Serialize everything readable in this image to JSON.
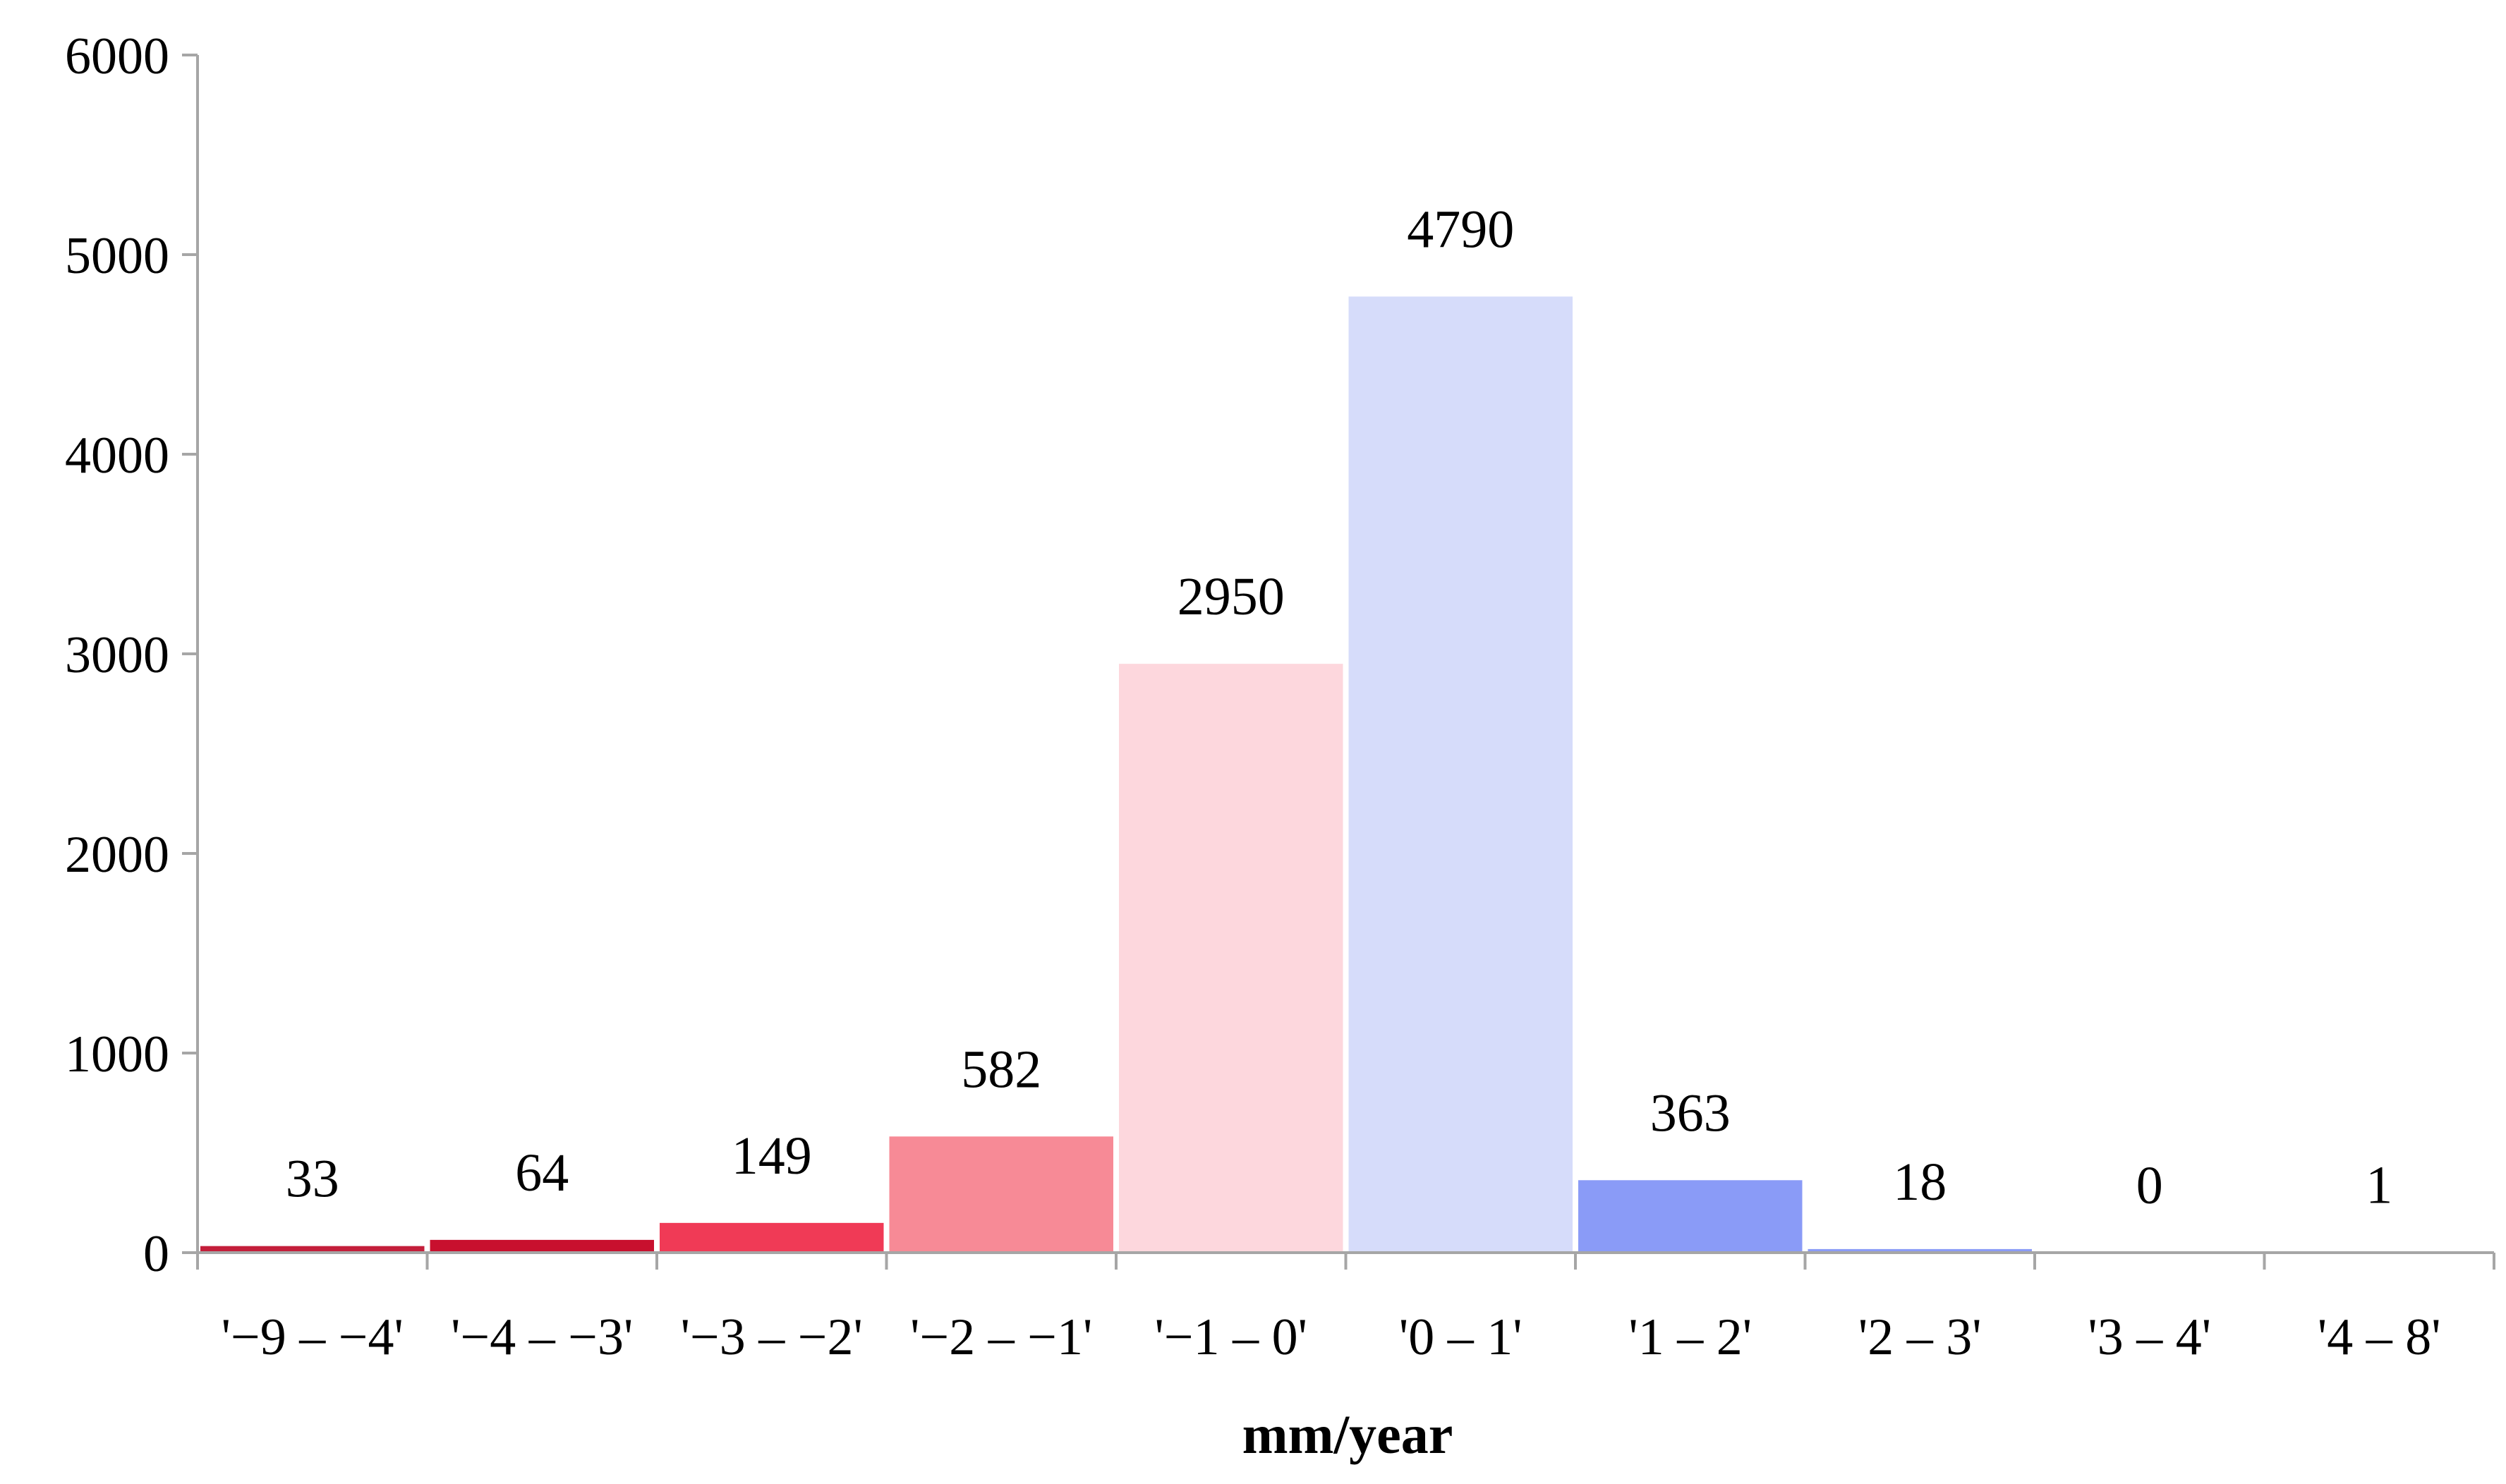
{
  "chart_data": {
    "type": "bar",
    "title": "",
    "xlabel": "mm/year",
    "ylabel": "",
    "ylim": [
      0,
      6000
    ],
    "yticks": [
      "0",
      "1000",
      "2000",
      "3000",
      "4000",
      "5000",
      "6000"
    ],
    "categories": [
      "'−9 – −4'",
      "'−4 – −3'",
      "'−3 – −2'",
      "'−2 – −1'",
      "'−1 – 0'",
      "'0 – 1'",
      "'1 – 2'",
      "'2 – 3'",
      "'3 – 4'",
      "'4 – 8'"
    ],
    "values": [
      33,
      64,
      149,
      582,
      2950,
      4790,
      363,
      18,
      0,
      1
    ],
    "data_labels": [
      "33",
      "64",
      "149",
      "582",
      "2950",
      "4790",
      "363",
      "18",
      "0",
      "1"
    ],
    "bar_colors": [
      "#c41e3a",
      "#c8102e",
      "#f03a56",
      "#f78a96",
      "#fdd7dd",
      "#d6dcfa",
      "#8a9bf7",
      "#8a9bf7",
      "#8a9bf7",
      "#8a9bf7"
    ],
    "axis_color": "#a6a6a6",
    "grid": false,
    "legend": "none"
  }
}
